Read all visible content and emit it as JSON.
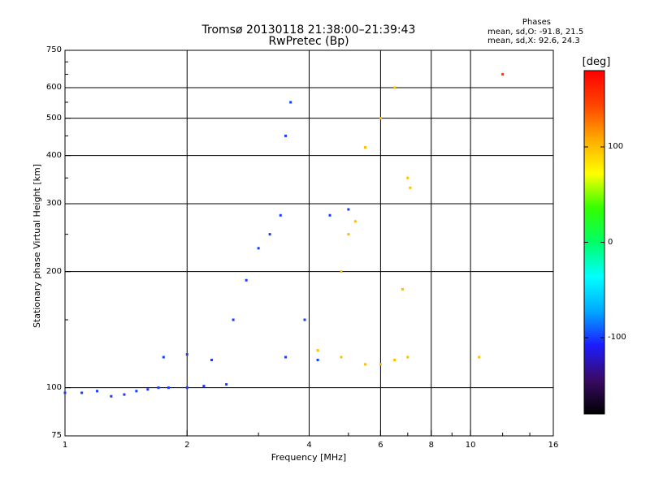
{
  "header": {
    "title_line1": "Tromsø 20130118 21:38:00–21:39:43",
    "title_line2": "RwPretec (Bp)",
    "phases_title": "Phases",
    "phases_o": "mean, sd,O:  -91.8, 21.5",
    "phases_x": "mean, sd,X:  92.6, 24.3"
  },
  "colorbar": {
    "unit_label": "[deg]",
    "range": [
      -180,
      180
    ],
    "tick_labels": [
      "100",
      "0",
      "-100"
    ],
    "tick_values": [
      100,
      0,
      -100
    ],
    "stops": [
      "#000000",
      "#3a0a66",
      "#1c1cff",
      "#00aaff",
      "#00ffff",
      "#00ff66",
      "#33ff00",
      "#ffff00",
      "#ffaa00",
      "#ff4400",
      "#ff0000"
    ]
  },
  "chart_data": {
    "type": "scatter",
    "title": "Tromsø 20130118 21:38:00–21:39:43",
    "subtitle": "RwPretec (Bp)",
    "xlabel": "Frequency [MHz]",
    "ylabel": "Stationary phase Virtual Height [km]",
    "xscale": "log",
    "yscale": "log",
    "xlim": [
      1,
      16
    ],
    "ylim": [
      75,
      750
    ],
    "grid": true,
    "x_ticks": [
      1,
      2,
      4,
      6,
      8,
      10,
      16
    ],
    "x_tick_labels": [
      "1",
      "2",
      "4",
      "6",
      "8",
      "10",
      "16"
    ],
    "y_ticks": [
      75,
      100,
      200,
      300,
      400,
      500,
      600,
      750
    ],
    "y_tick_labels": [
      "75",
      "100",
      "200",
      "300",
      "400",
      "500",
      "600",
      "750"
    ],
    "color_variable": "phase [deg]",
    "series": [
      {
        "name": "O-mode trace (blue, about -100 deg)",
        "points": [
          {
            "x": 1.0,
            "y": 97,
            "phase": -100
          },
          {
            "x": 1.1,
            "y": 97,
            "phase": -100
          },
          {
            "x": 1.2,
            "y": 98,
            "phase": -100
          },
          {
            "x": 1.3,
            "y": 95,
            "phase": -100
          },
          {
            "x": 1.4,
            "y": 96,
            "phase": -100
          },
          {
            "x": 1.5,
            "y": 98,
            "phase": -100
          },
          {
            "x": 1.6,
            "y": 99,
            "phase": -100
          },
          {
            "x": 1.7,
            "y": 100,
            "phase": -100
          },
          {
            "x": 1.8,
            "y": 100,
            "phase": -100
          },
          {
            "x": 2.0,
            "y": 100,
            "phase": -100
          },
          {
            "x": 2.2,
            "y": 101,
            "phase": -100
          },
          {
            "x": 2.5,
            "y": 102,
            "phase": -100
          },
          {
            "x": 1.75,
            "y": 120,
            "phase": -100
          },
          {
            "x": 2.0,
            "y": 122,
            "phase": -100
          },
          {
            "x": 2.3,
            "y": 118,
            "phase": -100
          },
          {
            "x": 2.6,
            "y": 150,
            "phase": -100
          },
          {
            "x": 2.8,
            "y": 190,
            "phase": -100
          },
          {
            "x": 3.0,
            "y": 230,
            "phase": -100
          },
          {
            "x": 3.2,
            "y": 250,
            "phase": -100
          },
          {
            "x": 3.4,
            "y": 280,
            "phase": -100
          },
          {
            "x": 3.5,
            "y": 450,
            "phase": -100
          },
          {
            "x": 3.6,
            "y": 550,
            "phase": -100
          },
          {
            "x": 3.5,
            "y": 120,
            "phase": -100
          },
          {
            "x": 4.2,
            "y": 118,
            "phase": -100
          },
          {
            "x": 4.5,
            "y": 280,
            "phase": -100
          },
          {
            "x": 5.0,
            "y": 290,
            "phase": -100
          },
          {
            "x": 3.9,
            "y": 150,
            "phase": -100
          }
        ]
      },
      {
        "name": "X-mode trace (yellow-orange, about 100 deg)",
        "points": [
          {
            "x": 4.2,
            "y": 125,
            "phase": 100
          },
          {
            "x": 4.8,
            "y": 120,
            "phase": 100
          },
          {
            "x": 5.5,
            "y": 115,
            "phase": 100
          },
          {
            "x": 6.0,
            "y": 115,
            "phase": 100
          },
          {
            "x": 6.5,
            "y": 118,
            "phase": 100
          },
          {
            "x": 7.0,
            "y": 120,
            "phase": 100
          },
          {
            "x": 4.8,
            "y": 200,
            "phase": 100
          },
          {
            "x": 5.0,
            "y": 250,
            "phase": 100
          },
          {
            "x": 5.2,
            "y": 270,
            "phase": 100
          },
          {
            "x": 5.5,
            "y": 420,
            "phase": 100
          },
          {
            "x": 6.0,
            "y": 500,
            "phase": 100
          },
          {
            "x": 6.5,
            "y": 600,
            "phase": 100
          },
          {
            "x": 7.0,
            "y": 350,
            "phase": 100
          },
          {
            "x": 7.1,
            "y": 330,
            "phase": 100
          },
          {
            "x": 6.8,
            "y": 180,
            "phase": 100
          },
          {
            "x": 10.5,
            "y": 120,
            "phase": 100
          },
          {
            "x": 12.0,
            "y": 650,
            "phase": 150
          }
        ]
      }
    ]
  }
}
